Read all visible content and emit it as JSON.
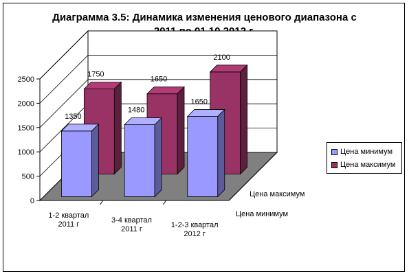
{
  "title": "Диаграмма 3.5: Динамика изменения ценового диапазона с 2011 по 01.10.2012 г.",
  "chart_data": {
    "type": "bar",
    "subtype": "3d-clustered-depth",
    "categories": [
      "1-2 квартал 2011 г",
      "3-4 квартал 2011 г",
      "1-2-3 квартал 2012 г"
    ],
    "series": [
      {
        "name": "Цена минимум",
        "values": [
          1350,
          1480,
          1650
        ],
        "color": "#9999ff",
        "labels": [
          "1350",
          "1480",
          "1650"
        ]
      },
      {
        "name": "Цена максимум",
        "values": [
          1750,
          1650,
          2100
        ],
        "color": "#993366",
        "labels": [
          "1750",
          "1650",
          "2100"
        ]
      }
    ],
    "y_ticks": [
      "0",
      "500",
      "1000",
      "1500",
      "2000",
      "2500"
    ],
    "ylim": [
      0,
      2500
    ],
    "depth_labels": [
      "Цена минимум",
      "Цена максимум"
    ],
    "grid": true,
    "legend": "right"
  }
}
